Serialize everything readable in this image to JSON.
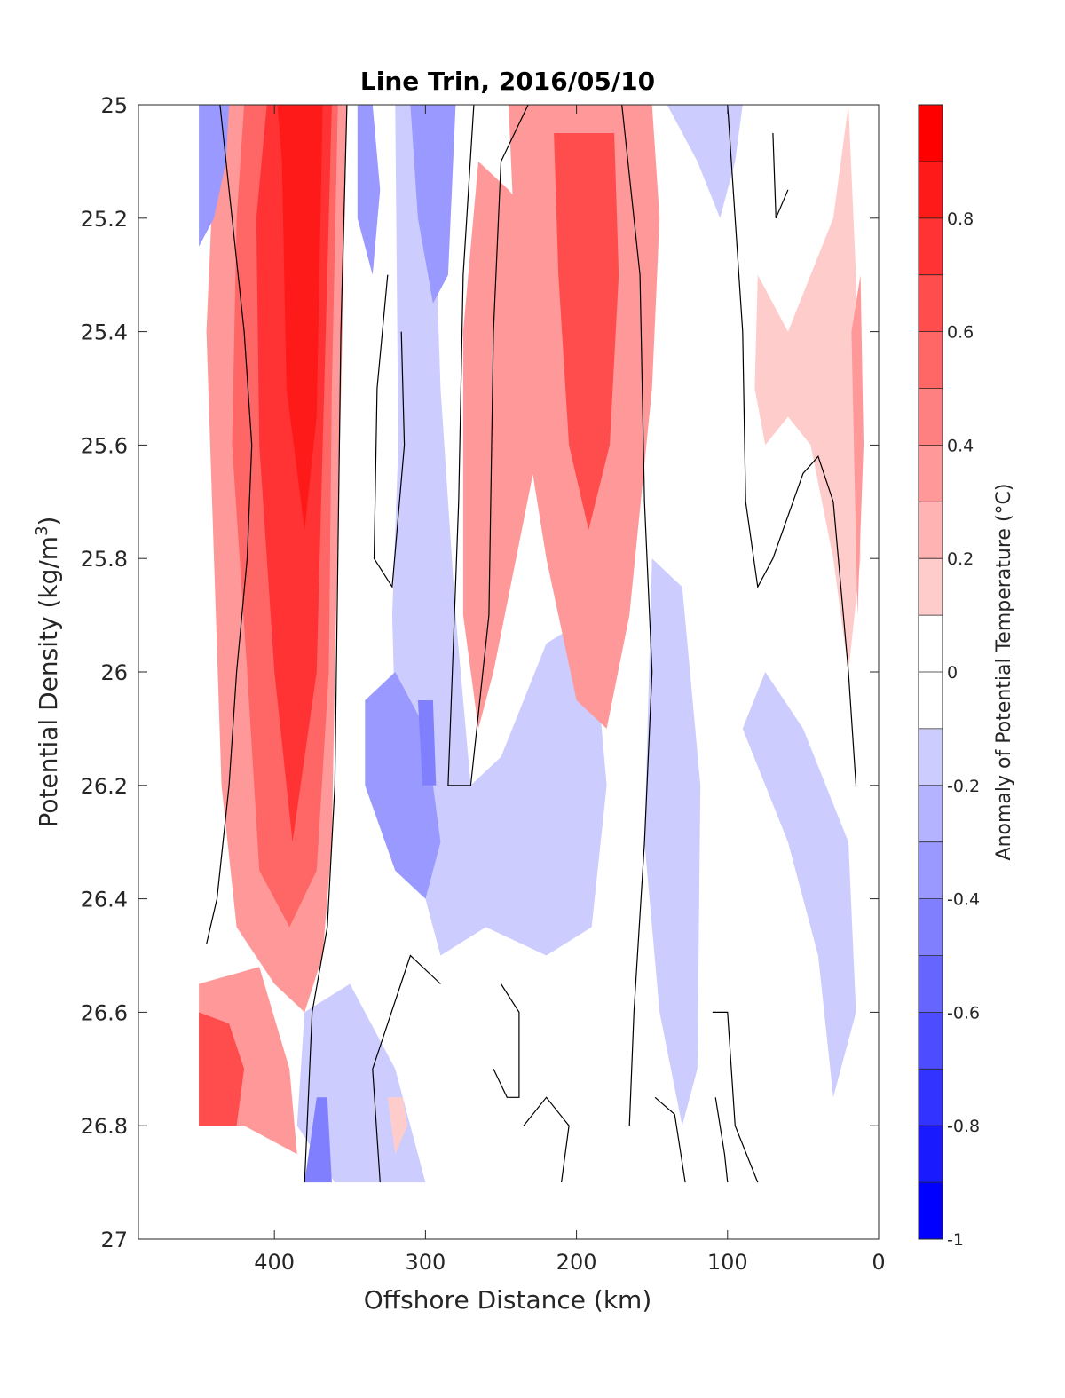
{
  "chart_data": {
    "type": "contourf",
    "title": "Line Trin, 2016/05/10",
    "xlabel": "Offshore Distance (km)",
    "ylabel": "Potential Density (kg/m",
    "ylabel_sup": "3",
    "ylabel_end": ")",
    "xlim": [
      490,
      0
    ],
    "ylim": [
      25,
      27
    ],
    "y_reversed": true,
    "x_ticks": [
      400,
      300,
      200,
      100,
      0
    ],
    "x_tick_labels": [
      "400",
      "300",
      "200",
      "100",
      "0"
    ],
    "y_ticks": [
      25,
      25.2,
      25.4,
      25.6,
      25.8,
      26,
      26.2,
      26.4,
      26.6,
      26.8,
      27
    ],
    "y_tick_labels": [
      "25",
      "25.2",
      "25.4",
      "25.6",
      "25.8",
      "26",
      "26.2",
      "26.4",
      "26.6",
      "26.8",
      "27"
    ],
    "colorbar": {
      "label": "Anomaly of Potential Temperature (°C)",
      "range": [
        -1,
        1
      ],
      "levels": [
        -1,
        -0.9,
        -0.8,
        -0.7,
        -0.6,
        -0.5,
        -0.4,
        -0.3,
        -0.2,
        -0.1,
        0.1,
        0.2,
        0.3,
        0.4,
        0.5,
        0.6,
        0.7,
        0.8,
        0.9,
        1.0
      ],
      "ticks": [
        -1,
        -0.8,
        -0.6,
        -0.4,
        -0.2,
        0,
        0.2,
        0.4,
        0.6,
        0.8
      ],
      "tick_labels": [
        "-1",
        "-0.8",
        "-0.6",
        "-0.4",
        "-0.2",
        "0",
        "0.2",
        "0.4",
        "0.6",
        "0.8"
      ],
      "colors": [
        "#0000ff",
        "#1a1aff",
        "#3333ff",
        "#4d4dff",
        "#6666ff",
        "#8080ff",
        "#9999ff",
        "#b3b3ff",
        "#ccccff",
        "#e6e6ff",
        "#ffffff",
        "#ffe6e6",
        "#ffcccc",
        "#ffb3b3",
        "#ff9999",
        "#ff8080",
        "#ff6666",
        "#ff4d4d",
        "#ff3333",
        "#ff1a1a",
        "#ff0000"
      ]
    },
    "data_extent": {
      "x": [
        450,
        10
      ],
      "y_top": 25,
      "y_bottom_left": 26.8,
      "y_bottom": 26.9
    },
    "anomaly_regions": [
      {
        "value": 0.3,
        "polygon": [
          [
            430,
            25
          ],
          [
            352,
            25
          ],
          [
            355,
            25.4
          ],
          [
            360,
            26.0
          ],
          [
            362,
            26.3
          ],
          [
            368,
            26.5
          ],
          [
            380,
            26.6
          ],
          [
            400,
            26.55
          ],
          [
            425,
            26.45
          ],
          [
            435,
            26.2
          ],
          [
            440,
            25.8
          ],
          [
            445,
            25.4
          ],
          [
            440,
            25.1
          ]
        ]
      },
      {
        "value": 0.5,
        "polygon": [
          [
            420,
            25
          ],
          [
            358,
            25
          ],
          [
            362,
            25.5
          ],
          [
            364,
            26.0
          ],
          [
            372,
            26.35
          ],
          [
            390,
            26.45
          ],
          [
            410,
            26.35
          ],
          [
            418,
            26.0
          ],
          [
            428,
            25.6
          ],
          [
            425,
            25.2
          ]
        ]
      },
      {
        "value": 0.7,
        "polygon": [
          [
            405,
            25
          ],
          [
            362,
            25
          ],
          [
            368,
            25.6
          ],
          [
            372,
            26.0
          ],
          [
            388,
            26.3
          ],
          [
            400,
            26.0
          ],
          [
            410,
            25.6
          ],
          [
            412,
            25.2
          ]
        ]
      },
      {
        "value": 0.9,
        "polygon": [
          [
            398,
            25
          ],
          [
            368,
            25
          ],
          [
            372,
            25.55
          ],
          [
            380,
            25.75
          ],
          [
            392,
            25.5
          ],
          [
            395,
            25.1
          ]
        ]
      },
      {
        "value": -0.3,
        "polygon": [
          [
            450,
            25
          ],
          [
            430,
            25
          ],
          [
            432,
            25.1
          ],
          [
            440,
            25.2
          ],
          [
            450,
            25.25
          ]
        ]
      },
      {
        "value": 0.3,
        "polygon": [
          [
            450,
            26.55
          ],
          [
            410,
            26.52
          ],
          [
            390,
            26.7
          ],
          [
            385,
            26.85
          ],
          [
            420,
            26.8
          ],
          [
            450,
            26.8
          ]
        ]
      },
      {
        "value": 0.6,
        "polygon": [
          [
            450,
            26.6
          ],
          [
            430,
            26.62
          ],
          [
            420,
            26.7
          ],
          [
            425,
            26.8
          ],
          [
            450,
            26.8
          ]
        ]
      },
      {
        "value": -0.2,
        "polygon": [
          [
            350,
            25
          ],
          [
            320,
            25
          ],
          [
            318,
            25.6
          ],
          [
            322,
            25.9
          ],
          [
            318,
            26.3
          ],
          [
            300,
            26.4
          ],
          [
            290,
            26.5
          ],
          [
            260,
            26.45
          ],
          [
            220,
            26.5
          ],
          [
            190,
            26.45
          ],
          [
            180,
            26.2
          ],
          [
            190,
            25.9
          ],
          [
            220,
            25.95
          ],
          [
            250,
            26.15
          ],
          [
            270,
            26.2
          ],
          [
            280,
            25.9
          ],
          [
            290,
            25.5
          ],
          [
            295,
            25.1
          ],
          [
            300,
            25
          ]
        ]
      },
      {
        "value": -0.3,
        "polygon": [
          [
            345,
            25
          ],
          [
            335,
            25
          ],
          [
            330,
            25.15
          ],
          [
            335,
            25.3
          ],
          [
            345,
            25.2
          ]
        ]
      },
      {
        "value": -0.3,
        "polygon": [
          [
            310,
            25
          ],
          [
            280,
            25
          ],
          [
            285,
            25.3
          ],
          [
            295,
            25.35
          ],
          [
            305,
            25.2
          ]
        ]
      },
      {
        "value": -0.3,
        "polygon": [
          [
            340,
            26.05
          ],
          [
            320,
            26.0
          ],
          [
            300,
            26.1
          ],
          [
            290,
            26.3
          ],
          [
            300,
            26.4
          ],
          [
            320,
            26.35
          ],
          [
            340,
            26.2
          ]
        ]
      },
      {
        "value": -0.5,
        "polygon": [
          [
            305,
            26.05
          ],
          [
            295,
            26.05
          ],
          [
            293,
            26.2
          ],
          [
            302,
            26.2
          ]
        ]
      },
      {
        "value": -0.2,
        "polygon": [
          [
            380,
            26.6
          ],
          [
            350,
            26.55
          ],
          [
            320,
            26.7
          ],
          [
            300,
            26.9
          ],
          [
            360,
            26.9
          ],
          [
            385,
            26.8
          ]
        ]
      },
      {
        "value": -0.4,
        "polygon": [
          [
            372,
            26.75
          ],
          [
            365,
            26.75
          ],
          [
            362,
            26.9
          ],
          [
            380,
            26.9
          ]
        ]
      },
      {
        "value": 0.3,
        "polygon": [
          [
            275,
            25.9
          ],
          [
            275,
            25.4
          ],
          [
            265,
            25.1
          ],
          [
            245,
            25.15
          ],
          [
            230,
            25.2
          ],
          [
            225,
            25.6
          ],
          [
            240,
            25.8
          ],
          [
            255,
            26.0
          ],
          [
            265,
            26.1
          ]
        ]
      },
      {
        "value": 0.3,
        "polygon": [
          [
            245,
            25
          ],
          [
            150,
            25
          ],
          [
            145,
            25.2
          ],
          [
            150,
            25.5
          ],
          [
            165,
            25.9
          ],
          [
            180,
            26.1
          ],
          [
            200,
            26.05
          ],
          [
            220,
            25.8
          ],
          [
            232,
            25.6
          ],
          [
            240,
            25.3
          ]
        ]
      },
      {
        "value": 0.6,
        "polygon": [
          [
            215,
            25.05
          ],
          [
            175,
            25.05
          ],
          [
            172,
            25.3
          ],
          [
            178,
            25.6
          ],
          [
            192,
            25.75
          ],
          [
            205,
            25.6
          ],
          [
            212,
            25.3
          ]
        ]
      },
      {
        "value": -0.2,
        "polygon": [
          [
            150,
            25.8
          ],
          [
            130,
            25.85
          ],
          [
            118,
            26.2
          ],
          [
            120,
            26.7
          ],
          [
            130,
            26.8
          ],
          [
            145,
            26.6
          ],
          [
            155,
            26.3
          ]
        ]
      },
      {
        "value": -0.2,
        "polygon": [
          [
            140,
            25
          ],
          [
            90,
            25
          ],
          [
            95,
            25.1
          ],
          [
            105,
            25.2
          ],
          [
            120,
            25.1
          ]
        ]
      },
      {
        "value": -0.2,
        "polygon": [
          [
            90,
            26.1
          ],
          [
            60,
            26.3
          ],
          [
            40,
            26.5
          ],
          [
            30,
            26.75
          ],
          [
            15,
            26.6
          ],
          [
            20,
            26.3
          ],
          [
            50,
            26.1
          ],
          [
            75,
            26.0
          ]
        ]
      },
      {
        "value": 0.2,
        "polygon": [
          [
            80,
            25.3
          ],
          [
            60,
            25.4
          ],
          [
            45,
            25.3
          ],
          [
            30,
            25.2
          ],
          [
            20,
            25.0
          ],
          [
            15,
            25.3
          ],
          [
            12,
            25.8
          ],
          [
            20,
            26.0
          ],
          [
            30,
            25.8
          ],
          [
            45,
            25.6
          ],
          [
            60,
            25.55
          ],
          [
            75,
            25.6
          ],
          [
            82,
            25.5
          ]
        ]
      },
      {
        "value": 0.4,
        "polygon": [
          [
            18,
            25.4
          ],
          [
            12,
            25.3
          ],
          [
            10,
            25.6
          ],
          [
            14,
            25.9
          ]
        ]
      },
      {
        "value": 0.2,
        "polygon": [
          [
            325,
            26.75
          ],
          [
            315,
            26.75
          ],
          [
            312,
            26.8
          ],
          [
            320,
            26.85
          ]
        ]
      }
    ],
    "zero_contours": [
      [
        [
          436,
          25
        ],
        [
          428,
          25.2
        ],
        [
          420,
          25.4
        ],
        [
          415,
          25.6
        ],
        [
          418,
          25.8
        ],
        [
          425,
          26.0
        ],
        [
          430,
          26.2
        ],
        [
          438,
          26.4
        ],
        [
          445,
          26.48
        ]
      ],
      [
        [
          352,
          25
        ],
        [
          356,
          25.4
        ],
        [
          358,
          25.8
        ],
        [
          360,
          26.2
        ],
        [
          365,
          26.45
        ],
        [
          375,
          26.6
        ],
        [
          380,
          26.9
        ]
      ],
      [
        [
          325,
          25.3
        ],
        [
          332,
          25.5
        ],
        [
          334,
          25.8
        ],
        [
          322,
          25.85
        ],
        [
          314,
          25.6
        ],
        [
          316,
          25.4
        ]
      ],
      [
        [
          268,
          25
        ],
        [
          275,
          25.3
        ],
        [
          278,
          25.7
        ],
        [
          285,
          26.2
        ],
        [
          270,
          26.2
        ],
        [
          258,
          25.9
        ],
        [
          255,
          25.4
        ],
        [
          250,
          25.1
        ],
        [
          232,
          25
        ]
      ],
      [
        [
          250,
          26.55
        ],
        [
          238,
          26.6
        ],
        [
          238,
          26.75
        ],
        [
          246,
          26.75
        ],
        [
          255,
          26.7
        ]
      ],
      [
        [
          290,
          26.55
        ],
        [
          310,
          26.5
        ],
        [
          335,
          26.7
        ],
        [
          330,
          26.9
        ]
      ],
      [
        [
          170,
          25
        ],
        [
          158,
          25.3
        ],
        [
          155,
          25.7
        ],
        [
          150,
          26.0
        ],
        [
          155,
          26.3
        ],
        [
          162,
          26.6
        ],
        [
          165,
          26.8
        ]
      ],
      [
        [
          100,
          25
        ],
        [
          95,
          25.2
        ],
        [
          90,
          25.4
        ],
        [
          88,
          25.7
        ],
        [
          80,
          25.85
        ],
        [
          70,
          25.8
        ],
        [
          50,
          25.65
        ],
        [
          40,
          25.62
        ],
        [
          30,
          25.7
        ],
        [
          20,
          26.0
        ],
        [
          15,
          26.2
        ]
      ],
      [
        [
          70,
          25.05
        ],
        [
          68,
          25.2
        ],
        [
          60,
          25.15
        ]
      ],
      [
        [
          110,
          26.6
        ],
        [
          100,
          26.6
        ],
        [
          95,
          26.8
        ],
        [
          80,
          26.9
        ]
      ],
      [
        [
          108,
          26.75
        ],
        [
          102,
          26.85
        ],
        [
          100,
          26.9
        ]
      ],
      [
        [
          128,
          26.9
        ],
        [
          135,
          26.78
        ],
        [
          148,
          26.75
        ]
      ],
      [
        [
          210,
          26.9
        ],
        [
          205,
          26.8
        ],
        [
          220,
          26.75
        ],
        [
          235,
          26.8
        ]
      ]
    ]
  }
}
